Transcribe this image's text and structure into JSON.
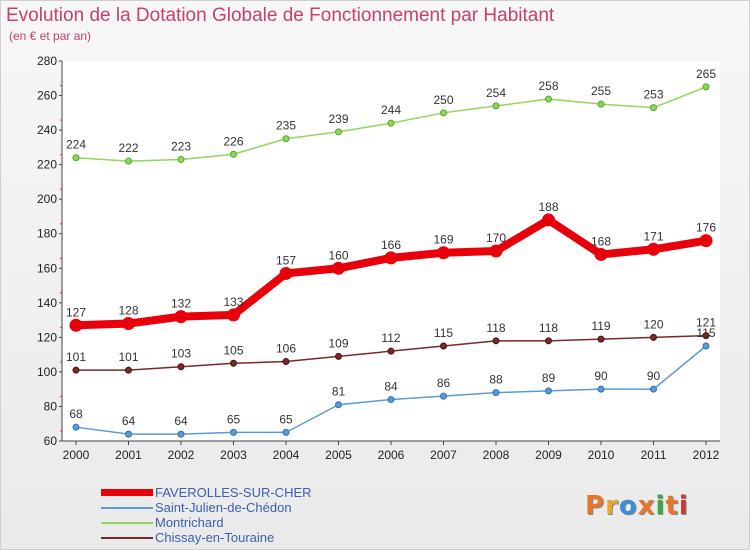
{
  "header": {
    "title": "Evolution de la Dotation Globale de Fonctionnement par Habitant",
    "subtitle": "(en € et par an)"
  },
  "logo": {
    "text": "Proxiti",
    "colors": [
      "#e8762a",
      "#e8a62a",
      "#3a8fd8",
      "#e8762a",
      "#3aa84a",
      "#e8762a",
      "#c83a3a"
    ]
  },
  "chart_data": {
    "type": "line",
    "categories": [
      "2000",
      "2001",
      "2002",
      "2003",
      "2004",
      "2005",
      "2006",
      "2007",
      "2008",
      "2009",
      "2010",
      "2011",
      "2012"
    ],
    "ylim": [
      60,
      280
    ],
    "yticks": [
      60,
      80,
      100,
      120,
      140,
      160,
      180,
      200,
      220,
      240,
      260,
      280
    ],
    "grid": false,
    "legend_position": "bottom-left",
    "series": [
      {
        "name": "FAVEROLLES-SUR-CHER",
        "color": "#e8000a",
        "values": [
          127,
          128,
          132,
          133,
          157,
          160,
          166,
          169,
          170,
          188,
          168,
          171,
          176
        ]
      },
      {
        "name": "Saint-Julien-de-Chédon",
        "color": "#5a9bd5",
        "values": [
          68,
          64,
          64,
          65,
          65,
          81,
          84,
          86,
          88,
          89,
          90,
          90,
          115
        ]
      },
      {
        "name": "Montrichard",
        "color": "#8fd65a",
        "values": [
          224,
          222,
          223,
          226,
          235,
          239,
          244,
          250,
          254,
          258,
          255,
          253,
          265
        ]
      },
      {
        "name": "Chissay-en-Touraine",
        "color": "#7a2a2a",
        "values": [
          101,
          101,
          103,
          105,
          106,
          109,
          112,
          115,
          118,
          118,
          119,
          120,
          121
        ]
      }
    ]
  }
}
